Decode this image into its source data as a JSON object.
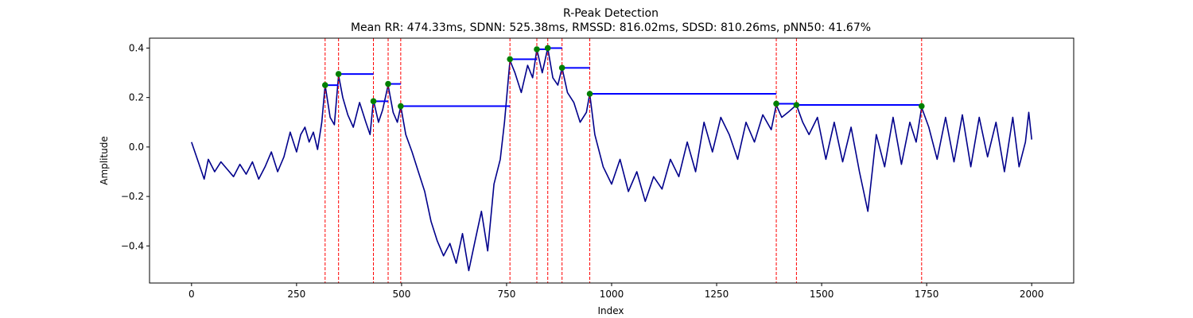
{
  "chart_data": {
    "type": "line",
    "title": "R-Peak Detection",
    "subtitle": "Mean RR: 474.33ms, SDNN: 525.38ms, RMSSD: 816.02ms, SDSD: 810.26ms, pNN50: 41.67%",
    "xlabel": "Index",
    "ylabel": "Amplitude",
    "xlim": [
      -100,
      2100
    ],
    "ylim": [
      -0.55,
      0.44
    ],
    "x_ticks": [
      0,
      250,
      500,
      750,
      1000,
      1250,
      1500,
      1750,
      2000
    ],
    "x_tick_labels": [
      "0",
      "250",
      "500",
      "750",
      "1000",
      "1250",
      "1500",
      "1750",
      "2000"
    ],
    "y_ticks": [
      -0.4,
      -0.2,
      0.0,
      0.2,
      0.4
    ],
    "y_tick_labels": [
      "−0.4",
      "−0.2",
      "0.0",
      "0.2",
      "0.4"
    ],
    "grid": false,
    "colors": {
      "signal": "#00008b",
      "peak_lines": "#ff0000",
      "peak_markers": "#008000",
      "rr_intervals": "#0000ff"
    },
    "signal": {
      "x": [
        0,
        10,
        20,
        30,
        40,
        55,
        70,
        85,
        100,
        115,
        130,
        145,
        160,
        175,
        190,
        205,
        220,
        235,
        250,
        260,
        270,
        280,
        290,
        300,
        310,
        318,
        330,
        340,
        350,
        360,
        372,
        385,
        400,
        415,
        425,
        433,
        445,
        455,
        468,
        480,
        490,
        498,
        510,
        525,
        540,
        555,
        570,
        585,
        600,
        615,
        630,
        645,
        660,
        675,
        690,
        705,
        720,
        735,
        745,
        758,
        770,
        785,
        800,
        812,
        822,
        835,
        848,
        860,
        872,
        882,
        895,
        910,
        925,
        940,
        948,
        960,
        980,
        1000,
        1020,
        1040,
        1060,
        1080,
        1100,
        1120,
        1140,
        1160,
        1180,
        1200,
        1220,
        1240,
        1260,
        1280,
        1300,
        1320,
        1340,
        1360,
        1380,
        1392,
        1405,
        1420,
        1440,
        1455,
        1470,
        1490,
        1510,
        1530,
        1550,
        1570,
        1590,
        1610,
        1630,
        1650,
        1670,
        1690,
        1710,
        1725,
        1738,
        1755,
        1775,
        1795,
        1815,
        1835,
        1855,
        1875,
        1895,
        1915,
        1935,
        1955,
        1970,
        1985,
        1993,
        2000
      ],
      "y": [
        0.02,
        -0.03,
        -0.08,
        -0.13,
        -0.05,
        -0.1,
        -0.06,
        -0.09,
        -0.12,
        -0.07,
        -0.11,
        -0.06,
        -0.13,
        -0.08,
        -0.02,
        -0.1,
        -0.04,
        0.06,
        -0.02,
        0.05,
        0.08,
        0.02,
        0.06,
        -0.01,
        0.1,
        0.25,
        0.12,
        0.09,
        0.29,
        0.2,
        0.13,
        0.08,
        0.18,
        0.1,
        0.05,
        0.19,
        0.1,
        0.15,
        0.25,
        0.14,
        0.1,
        0.165,
        0.05,
        -0.02,
        -0.1,
        -0.18,
        -0.3,
        -0.38,
        -0.44,
        -0.39,
        -0.47,
        -0.35,
        -0.5,
        -0.38,
        -0.26,
        -0.42,
        -0.15,
        -0.05,
        0.1,
        0.35,
        0.3,
        0.22,
        0.33,
        0.28,
        0.395,
        0.3,
        0.4,
        0.28,
        0.25,
        0.32,
        0.22,
        0.18,
        0.1,
        0.14,
        0.215,
        0.05,
        -0.08,
        -0.15,
        -0.05,
        -0.18,
        -0.1,
        -0.22,
        -0.12,
        -0.17,
        -0.05,
        -0.12,
        0.02,
        -0.1,
        0.1,
        -0.02,
        0.12,
        0.05,
        -0.05,
        0.1,
        0.02,
        0.13,
        0.07,
        0.17,
        0.12,
        0.14,
        0.17,
        0.1,
        0.05,
        0.12,
        -0.05,
        0.1,
        -0.06,
        0.08,
        -0.1,
        -0.26,
        0.05,
        -0.08,
        0.12,
        -0.07,
        0.1,
        0.02,
        0.16,
        0.08,
        -0.05,
        0.12,
        -0.06,
        0.13,
        -0.08,
        0.12,
        -0.04,
        0.1,
        -0.1,
        0.12,
        -0.08,
        0.02,
        0.14,
        0.03
      ]
    },
    "peaks": {
      "x": [
        318,
        350,
        433,
        468,
        498,
        758,
        822,
        848,
        882,
        948,
        1392,
        1440,
        1738
      ],
      "y": [
        0.25,
        0.295,
        0.185,
        0.255,
        0.165,
        0.355,
        0.395,
        0.4,
        0.32,
        0.215,
        0.175,
        0.17,
        0.165
      ]
    }
  }
}
